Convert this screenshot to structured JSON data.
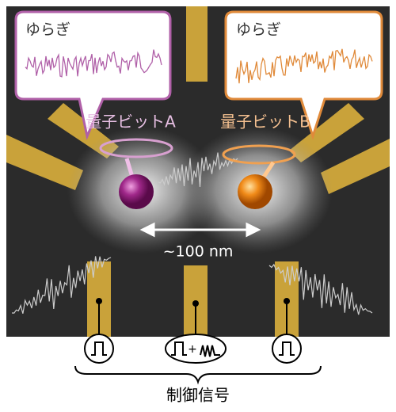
{
  "bubbles": [
    {
      "label": "ゆらぎ"
    },
    {
      "label": "ゆらぎ"
    }
  ],
  "qubits": [
    {
      "label": "量子ビットA"
    },
    {
      "label": "量子ビットB"
    }
  ],
  "distance": "~100 nm",
  "pulse_plus": "+",
  "control_label": "制御信号"
}
